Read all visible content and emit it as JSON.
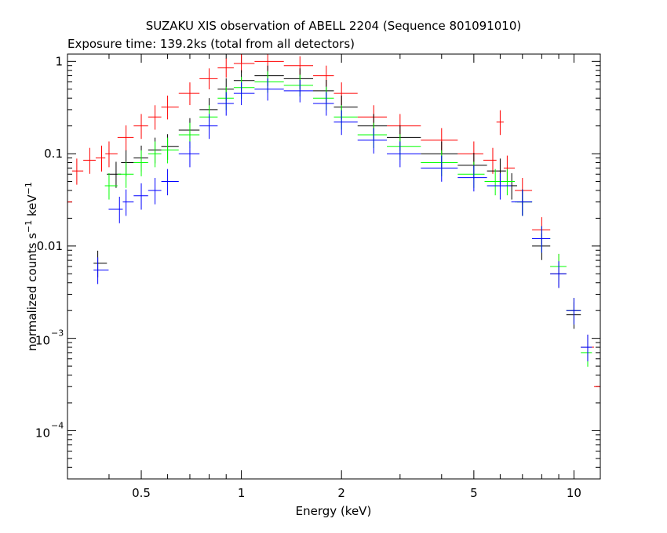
{
  "chart_data": {
    "type": "scatter",
    "title": "SUZAKU XIS observation of ABELL 2204 (Sequence 801091010)",
    "subtitle": "Exposure time: 139.2ks (total from all detectors)",
    "xlabel": "Energy (keV)",
    "ylabel": {
      "prefix": "normalized counts s",
      "sup1": "−1",
      "mid": " keV",
      "sup2": "−1"
    },
    "xscale": "log",
    "yscale": "log",
    "xlim": [
      0.3,
      12
    ],
    "ylim": [
      3e-05,
      1.2
    ],
    "xticks": [
      {
        "value": 0.5,
        "label": "0.5"
      },
      {
        "value": 1,
        "label": "1"
      },
      {
        "value": 2,
        "label": "2"
      },
      {
        "value": 5,
        "label": "5"
      },
      {
        "value": 10,
        "label": "10"
      }
    ],
    "yticks": [
      {
        "value": 1,
        "base": "1",
        "exp": ""
      },
      {
        "value": 0.1,
        "base": "0.1",
        "exp": ""
      },
      {
        "value": 0.01,
        "base": "0.01",
        "exp": ""
      },
      {
        "value": 0.001,
        "base": "10",
        "exp": "−3"
      },
      {
        "value": 0.0001,
        "base": "10",
        "exp": "−4"
      }
    ],
    "series": [
      {
        "color": "#ff0000",
        "points": [
          [
            0.3,
            0.03
          ],
          [
            0.32,
            0.065
          ],
          [
            0.35,
            0.085
          ],
          [
            0.38,
            0.09
          ],
          [
            0.4,
            0.1
          ],
          [
            0.45,
            0.15
          ],
          [
            0.5,
            0.2
          ],
          [
            0.55,
            0.25
          ],
          [
            0.6,
            0.32
          ],
          [
            0.7,
            0.45
          ],
          [
            0.8,
            0.65
          ],
          [
            0.9,
            0.85
          ],
          [
            1.0,
            0.95
          ],
          [
            1.2,
            1.0
          ],
          [
            1.5,
            0.9
          ],
          [
            1.8,
            0.7
          ],
          [
            2.0,
            0.45
          ],
          [
            2.5,
            0.25
          ],
          [
            3.0,
            0.2
          ],
          [
            4.0,
            0.14
          ],
          [
            5.0,
            0.1
          ],
          [
            5.7,
            0.085
          ],
          [
            6.0,
            0.22
          ],
          [
            6.3,
            0.07
          ],
          [
            7.0,
            0.04
          ],
          [
            8.0,
            0.015
          ],
          [
            9.0,
            0.006
          ],
          [
            10.0,
            0.002
          ],
          [
            11.0,
            0.0008
          ],
          [
            12.0,
            0.0003
          ]
        ]
      },
      {
        "color": "#000000",
        "points": [
          [
            0.37,
            0.0065
          ],
          [
            0.42,
            0.06
          ],
          [
            0.45,
            0.08
          ],
          [
            0.5,
            0.09
          ],
          [
            0.55,
            0.11
          ],
          [
            0.6,
            0.12
          ],
          [
            0.7,
            0.18
          ],
          [
            0.8,
            0.3
          ],
          [
            0.9,
            0.5
          ],
          [
            1.0,
            0.62
          ],
          [
            1.2,
            0.7
          ],
          [
            1.5,
            0.65
          ],
          [
            1.8,
            0.48
          ],
          [
            2.0,
            0.32
          ],
          [
            2.5,
            0.2
          ],
          [
            3.0,
            0.15
          ],
          [
            4.0,
            0.1
          ],
          [
            5.0,
            0.075
          ],
          [
            6.0,
            0.065
          ],
          [
            6.5,
            0.045
          ],
          [
            7.0,
            0.03
          ],
          [
            8.0,
            0.01
          ],
          [
            9.0,
            0.005
          ],
          [
            10.0,
            0.0018
          ],
          [
            11.0,
            0.0008
          ]
        ]
      },
      {
        "color": "#00ff00",
        "points": [
          [
            0.4,
            0.045
          ],
          [
            0.45,
            0.06
          ],
          [
            0.5,
            0.08
          ],
          [
            0.55,
            0.1
          ],
          [
            0.6,
            0.11
          ],
          [
            0.7,
            0.16
          ],
          [
            0.8,
            0.25
          ],
          [
            0.9,
            0.4
          ],
          [
            1.0,
            0.52
          ],
          [
            1.2,
            0.6
          ],
          [
            1.5,
            0.55
          ],
          [
            1.8,
            0.4
          ],
          [
            2.0,
            0.25
          ],
          [
            2.5,
            0.16
          ],
          [
            3.0,
            0.12
          ],
          [
            4.0,
            0.08
          ],
          [
            5.0,
            0.06
          ],
          [
            5.8,
            0.05
          ],
          [
            6.3,
            0.05
          ],
          [
            7.0,
            0.03
          ],
          [
            8.0,
            0.012
          ],
          [
            9.0,
            0.006
          ],
          [
            10.0,
            0.002
          ],
          [
            11.0,
            0.0007
          ]
        ]
      },
      {
        "color": "#0000ff",
        "points": [
          [
            0.37,
            0.0055
          ],
          [
            0.43,
            0.025
          ],
          [
            0.45,
            0.03
          ],
          [
            0.5,
            0.035
          ],
          [
            0.55,
            0.04
          ],
          [
            0.6,
            0.05
          ],
          [
            0.7,
            0.1
          ],
          [
            0.8,
            0.2
          ],
          [
            0.9,
            0.35
          ],
          [
            1.0,
            0.45
          ],
          [
            1.2,
            0.5
          ],
          [
            1.5,
            0.48
          ],
          [
            1.8,
            0.35
          ],
          [
            2.0,
            0.22
          ],
          [
            2.5,
            0.14
          ],
          [
            3.0,
            0.1
          ],
          [
            4.0,
            0.07
          ],
          [
            5.0,
            0.055
          ],
          [
            6.0,
            0.045
          ],
          [
            7.0,
            0.03
          ],
          [
            8.0,
            0.012
          ],
          [
            9.0,
            0.005
          ],
          [
            10.0,
            0.002
          ],
          [
            11.0,
            0.0008
          ]
        ]
      }
    ]
  }
}
